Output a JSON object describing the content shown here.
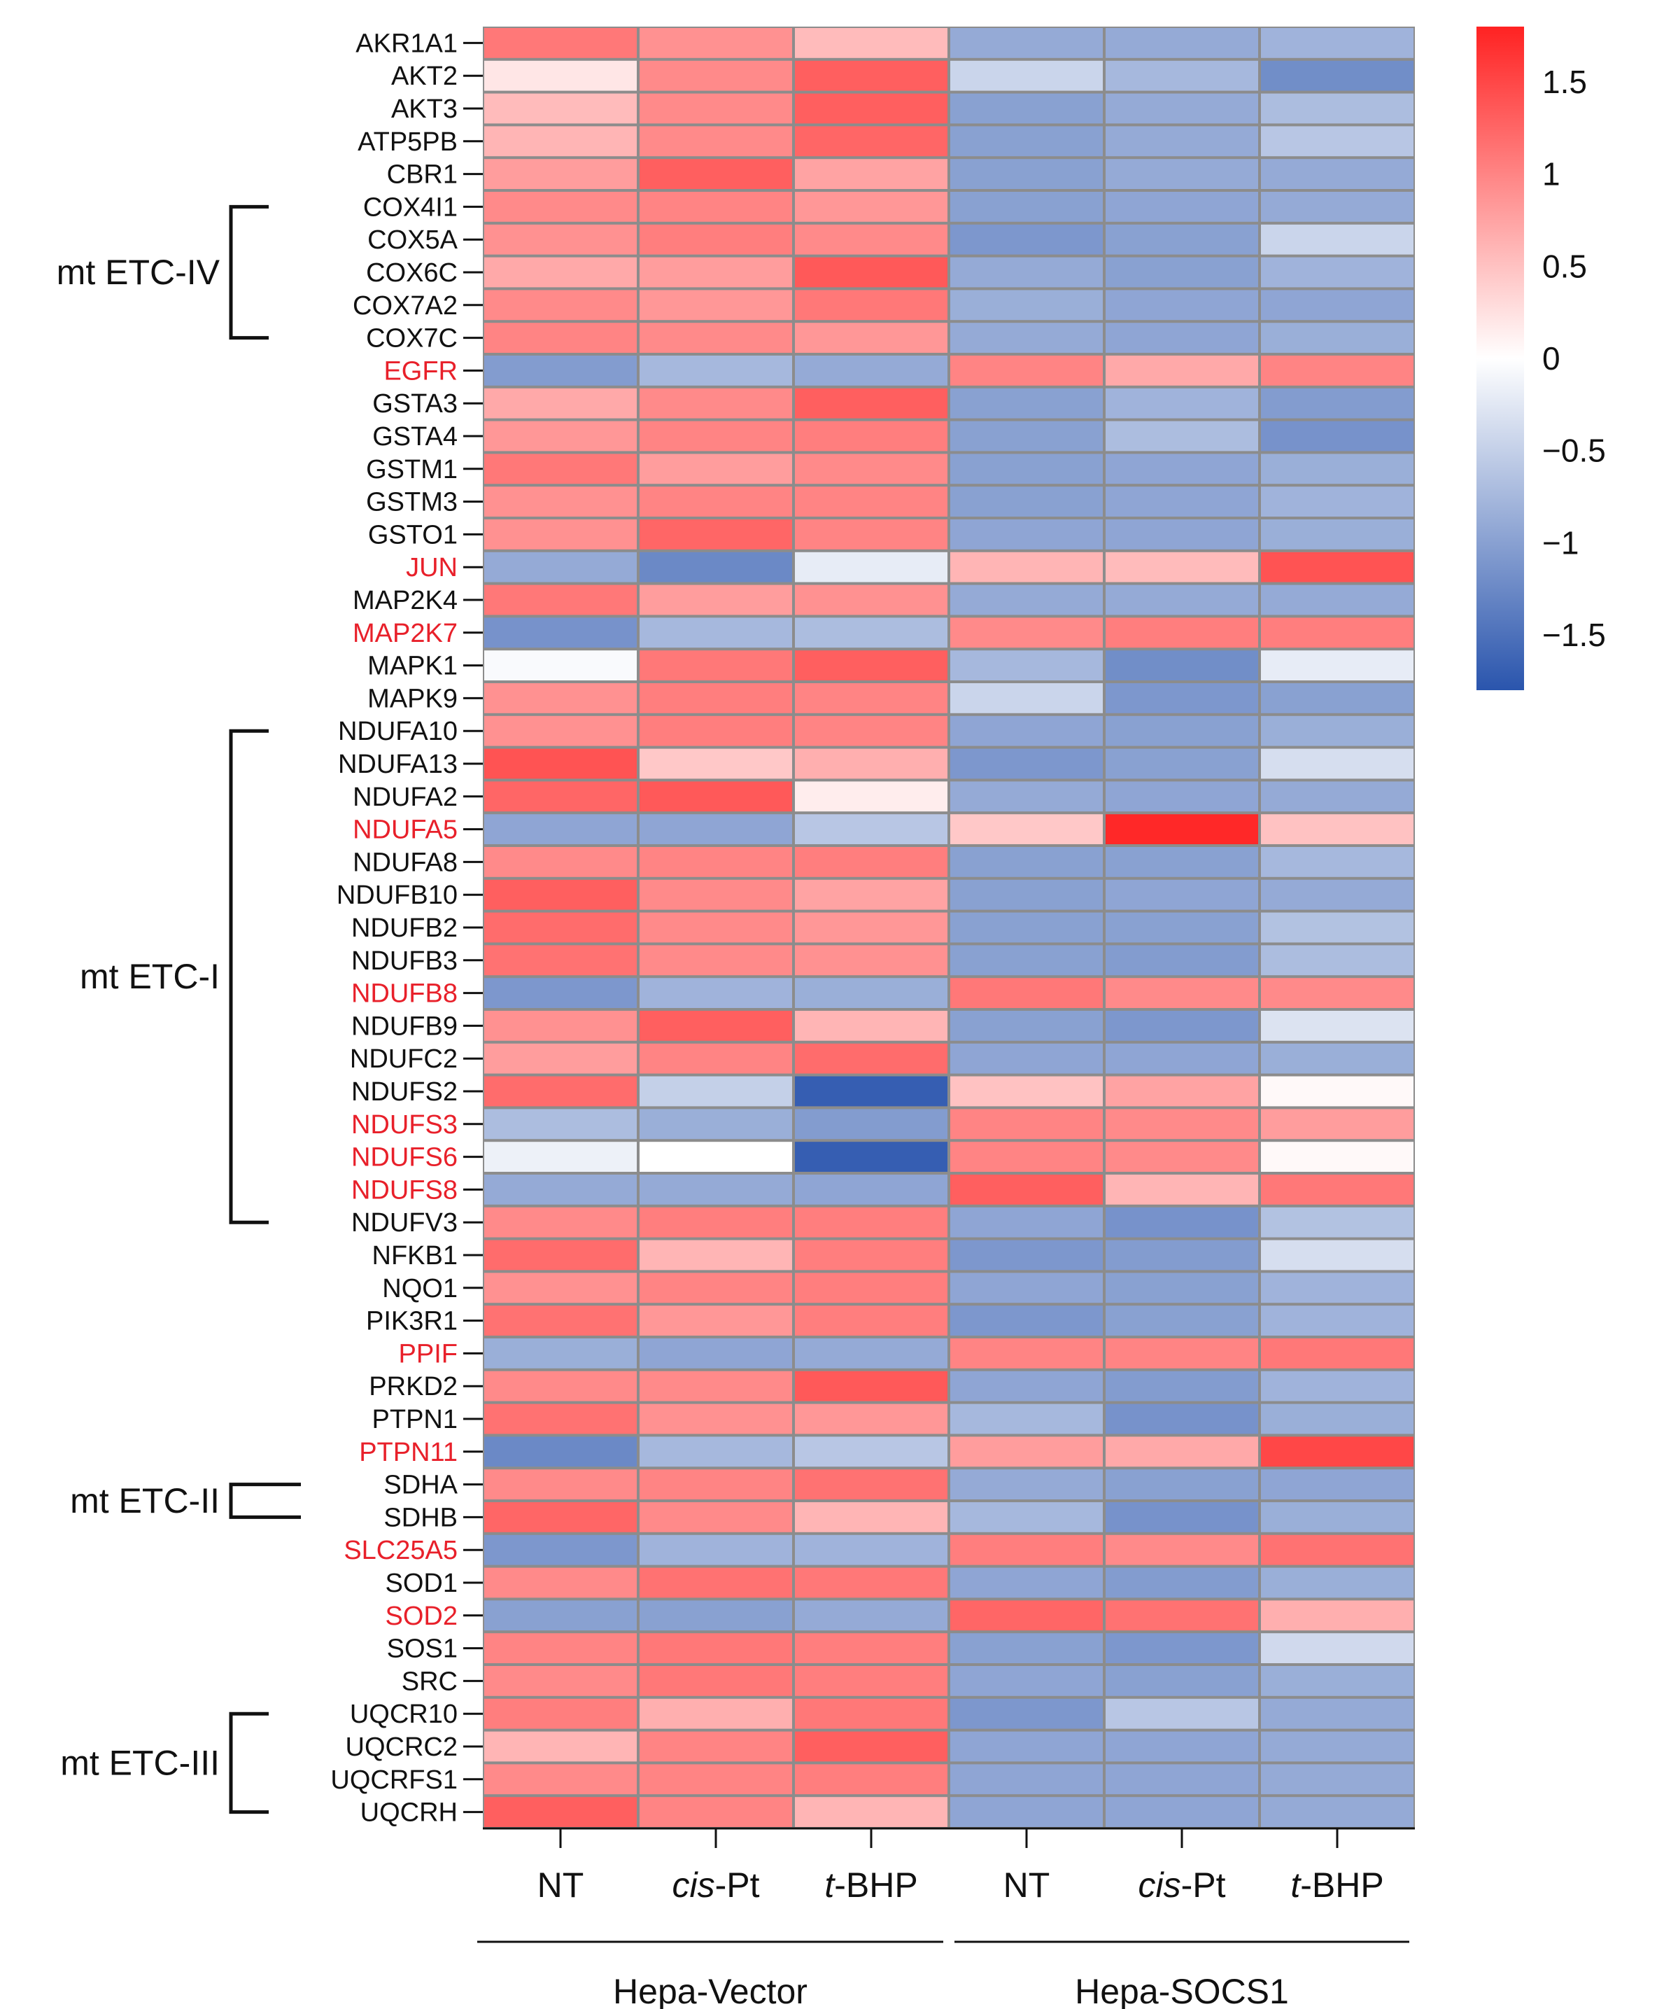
{
  "chart_data": {
    "type": "heatmap",
    "title": "",
    "x": [
      "NT",
      "cis-Pt",
      "t-BHP",
      "NT",
      "cis-Pt",
      "t-BHP"
    ],
    "x_label_parts": [
      {
        "italic": "",
        "plain": "NT"
      },
      {
        "italic": "cis",
        "plain": "-Pt"
      },
      {
        "italic": "t",
        "plain": "-BHP"
      },
      {
        "italic": "",
        "plain": "NT"
      },
      {
        "italic": "cis",
        "plain": "-Pt"
      },
      {
        "italic": "t",
        "plain": "-BHP"
      }
    ],
    "column_groups": [
      {
        "label": "Hepa-Vector",
        "columns": [
          0,
          1,
          2
        ]
      },
      {
        "label": "Hepa-SOCS1",
        "columns": [
          3,
          4,
          5
        ]
      }
    ],
    "y": [
      "AKR1A1",
      "AKT2",
      "AKT3",
      "ATP5PB",
      "CBR1",
      "COX4I1",
      "COX5A",
      "COX6C",
      "COX7A2",
      "COX7C",
      "EGFR",
      "GSTA3",
      "GSTA4",
      "GSTM1",
      "GSTM3",
      "GSTO1",
      "JUN",
      "MAP2K4",
      "MAP2K7",
      "MAPK1",
      "MAPK9",
      "NDUFA10",
      "NDUFA13",
      "NDUFA2",
      "NDUFA5",
      "NDUFA8",
      "NDUFB10",
      "NDUFB2",
      "NDUFB3",
      "NDUFB8",
      "NDUFB9",
      "NDUFC2",
      "NDUFS2",
      "NDUFS3",
      "NDUFS6",
      "NDUFS8",
      "NDUFV3",
      "NFKB1",
      "NQO1",
      "PIK3R1",
      "PPIF",
      "PRKD2",
      "PTPN1",
      "PTPN11",
      "SDHA",
      "SDHB",
      "SLC25A5",
      "SOD1",
      "SOD2",
      "SOS1",
      "SRC",
      "UQCR10",
      "UQCRC2",
      "UQCRFS1",
      "UQCRH"
    ],
    "highlighted_genes": [
      "EGFR",
      "JUN",
      "MAP2K7",
      "NDUFA5",
      "NDUFB8",
      "NDUFS3",
      "NDUFS6",
      "NDUFS8",
      "PPIF",
      "PTPN11",
      "SLC25A5",
      "SOD2"
    ],
    "values": [
      [
        1.1,
        0.9,
        0.55,
        -0.9,
        -0.9,
        -0.8
      ],
      [
        0.2,
        0.95,
        1.3,
        -0.45,
        -0.75,
        -1.2
      ],
      [
        0.55,
        0.95,
        1.3,
        -1.0,
        -0.9,
        -0.7
      ],
      [
        0.6,
        0.95,
        1.25,
        -1.0,
        -0.9,
        -0.6
      ],
      [
        0.8,
        1.3,
        0.75,
        -1.0,
        -0.9,
        -0.9
      ],
      [
        0.95,
        1.0,
        0.85,
        -1.0,
        -0.95,
        -0.9
      ],
      [
        0.9,
        1.05,
        0.95,
        -1.1,
        -1.0,
        -0.45
      ],
      [
        0.7,
        0.8,
        1.35,
        -0.9,
        -1.0,
        -0.8
      ],
      [
        0.95,
        0.85,
        1.1,
        -0.85,
        -0.95,
        -0.95
      ],
      [
        1.0,
        0.95,
        0.85,
        -0.9,
        -0.95,
        -0.85
      ],
      [
        -1.05,
        -0.75,
        -0.9,
        1.0,
        0.7,
        1.0
      ],
      [
        0.7,
        0.95,
        1.3,
        -1.0,
        -0.8,
        -1.05
      ],
      [
        0.85,
        1.0,
        1.05,
        -1.0,
        -0.7,
        -1.15
      ],
      [
        1.1,
        0.8,
        0.95,
        -1.0,
        -0.95,
        -0.85
      ],
      [
        0.9,
        1.0,
        1.0,
        -1.0,
        -0.95,
        -0.8
      ],
      [
        0.9,
        1.25,
        1.0,
        -0.95,
        -0.95,
        -0.85
      ],
      [
        -0.9,
        -1.25,
        -0.2,
        0.6,
        0.55,
        1.4
      ],
      [
        1.1,
        0.8,
        0.9,
        -0.9,
        -0.9,
        -0.9
      ],
      [
        -1.15,
        -0.75,
        -0.7,
        0.95,
        1.05,
        1.05
      ],
      [
        -0.05,
        1.1,
        1.3,
        -0.75,
        -1.2,
        -0.2
      ],
      [
        0.9,
        1.05,
        1.0,
        -0.45,
        -1.1,
        -1.0
      ],
      [
        0.9,
        1.05,
        1.0,
        -0.95,
        -1.0,
        -0.85
      ],
      [
        1.4,
        0.45,
        0.65,
        -1.1,
        -1.0,
        -0.35
      ],
      [
        1.25,
        1.35,
        0.15,
        -0.9,
        -0.95,
        -0.9
      ],
      [
        -0.95,
        -0.95,
        -0.6,
        0.45,
        1.75,
        0.5
      ],
      [
        0.95,
        1.0,
        1.05,
        -1.0,
        -1.0,
        -0.75
      ],
      [
        1.3,
        0.95,
        0.75,
        -1.0,
        -0.95,
        -0.9
      ],
      [
        1.2,
        0.95,
        0.85,
        -1.0,
        -1.0,
        -0.65
      ],
      [
        1.15,
        0.95,
        0.9,
        -1.0,
        -1.05,
        -0.7
      ],
      [
        -1.1,
        -0.8,
        -0.85,
        1.1,
        0.95,
        0.95
      ],
      [
        0.9,
        1.3,
        0.6,
        -1.0,
        -1.1,
        -0.3
      ],
      [
        0.8,
        1.0,
        1.2,
        -0.95,
        -0.95,
        -0.85
      ],
      [
        1.2,
        -0.5,
        -1.7,
        0.5,
        0.75,
        0.05
      ],
      [
        -0.7,
        -0.85,
        -1.05,
        1.0,
        0.95,
        0.8
      ],
      [
        -0.15,
        0.0,
        -1.7,
        1.0,
        0.95,
        0.05
      ],
      [
        -0.9,
        -0.9,
        -0.95,
        1.3,
        0.6,
        1.1
      ],
      [
        0.95,
        1.05,
        1.05,
        -0.95,
        -1.15,
        -0.65
      ],
      [
        1.2,
        0.6,
        1.05,
        -1.1,
        -1.05,
        -0.35
      ],
      [
        0.9,
        1.0,
        1.05,
        -0.95,
        -1.0,
        -0.8
      ],
      [
        1.15,
        0.85,
        1.05,
        -1.1,
        -1.0,
        -0.8
      ],
      [
        -0.85,
        -0.95,
        -0.9,
        1.0,
        1.0,
        1.1
      ],
      [
        0.95,
        0.95,
        1.35,
        -0.95,
        -1.05,
        -0.8
      ],
      [
        1.15,
        0.9,
        0.85,
        -0.75,
        -1.15,
        -0.85
      ],
      [
        -1.25,
        -0.75,
        -0.6,
        0.8,
        0.7,
        1.5
      ],
      [
        0.95,
        1.0,
        1.15,
        -0.9,
        -1.0,
        -0.95
      ],
      [
        1.25,
        0.95,
        0.6,
        -0.75,
        -1.15,
        -0.85
      ],
      [
        -1.1,
        -0.8,
        -0.8,
        1.05,
        0.95,
        1.15
      ],
      [
        0.95,
        1.15,
        1.1,
        -0.95,
        -1.05,
        -0.85
      ],
      [
        -1.0,
        -1.0,
        -0.9,
        1.25,
        1.15,
        0.65
      ],
      [
        1.0,
        1.1,
        1.05,
        -1.0,
        -1.1,
        -0.4
      ],
      [
        0.95,
        1.1,
        1.05,
        -0.95,
        -1.0,
        -0.85
      ],
      [
        1.05,
        0.65,
        1.1,
        -1.1,
        -0.6,
        -0.9
      ],
      [
        0.6,
        1.0,
        1.3,
        -0.95,
        -0.95,
        -0.9
      ],
      [
        0.95,
        1.0,
        1.05,
        -0.95,
        -0.95,
        -0.9
      ],
      [
        1.3,
        1.0,
        0.6,
        -0.95,
        -0.95,
        -0.9
      ]
    ],
    "colorscale": {
      "min": -1.8,
      "mid": 0,
      "max": 1.8,
      "low_color": "#2a55ad",
      "mid_color": "#ffffff",
      "high_color": "#ff2222"
    },
    "colorbar_ticks": [
      1.5,
      1,
      0.5,
      0,
      -0.5,
      -1,
      -1.5
    ],
    "colorbar_tick_labels": [
      "1.5",
      "1",
      "0.5",
      "0",
      "−0.5",
      "−1",
      "−1.5"
    ],
    "row_groups": [
      {
        "label": "mt ETC-IV",
        "from": "COX4I1",
        "to": "COX7C"
      },
      {
        "label": "mt ETC-I",
        "from": "NDUFA10",
        "to": "NDUFV3"
      },
      {
        "label": "mt ETC-II",
        "from": "SDHA",
        "to": "SDHB"
      },
      {
        "label": "mt ETC-III",
        "from": "UQCR10",
        "to": "UQCRH"
      }
    ],
    "colors": {
      "highlight_text": "#e8202a",
      "normal_text": "#111111",
      "cell_border": "#8c8c8c"
    }
  }
}
